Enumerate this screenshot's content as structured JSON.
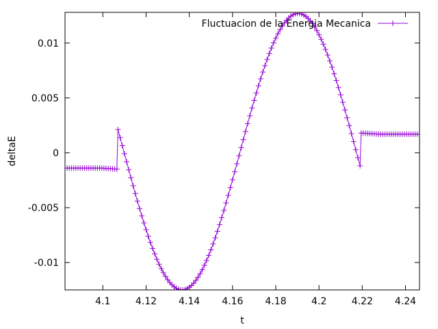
{
  "chart_data": {
    "type": "line",
    "title": "",
    "xlabel": "t",
    "ylabel": "deltaE",
    "xlim": [
      4.0825,
      4.2465
    ],
    "ylim": [
      -0.0125,
      0.0128
    ],
    "x_ticks": [
      4.1,
      4.12,
      4.14,
      4.16,
      4.18,
      4.2,
      4.22,
      4.24
    ],
    "x_tick_labels": [
      "4.1",
      "4.12",
      "4.14",
      "4.16",
      "4.18",
      "4.2",
      "4.22",
      "4.24"
    ],
    "y_ticks": [
      0.01,
      0.005,
      0,
      -0.005,
      -0.01
    ],
    "y_tick_labels": [
      "0.01",
      "0.005",
      "0",
      "-0.005",
      "-0.01"
    ],
    "grid": false,
    "legend_position": "top-right",
    "series": [
      {
        "name": "Fluctuacion de la Energia Mecanica",
        "color": "#9400d3",
        "marker": "plus",
        "shape": {
          "flat_start": {
            "x_from": 4.0825,
            "x_to": 4.107,
            "y": -0.0014,
            "y_end": -0.0015
          },
          "sine": {
            "x_from": 4.107,
            "x_to": 4.2195,
            "offset": 0.0001,
            "amplitude": 0.0126,
            "center": 4.1635,
            "period": 0.1075
          },
          "flat_end": {
            "x_from": 4.2195,
            "x_to": 4.2465,
            "y": 0.0017,
            "y_start": 0.0018
          },
          "sample_step": 0.001
        }
      }
    ]
  }
}
